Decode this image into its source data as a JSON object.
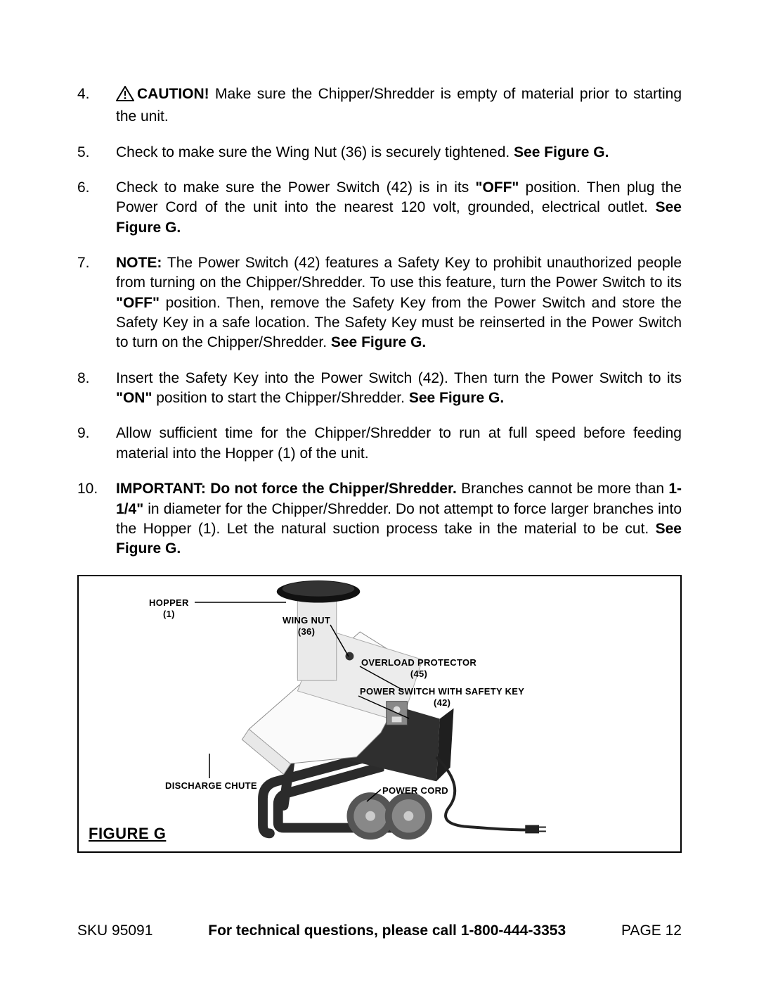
{
  "items": [
    {
      "num": "4.",
      "icon": true,
      "parts": [
        {
          "b": true,
          "t": "CAUTION!  "
        },
        {
          "b": false,
          "t": "Make sure the Chipper/Shredder is empty of material prior to starting the unit."
        }
      ]
    },
    {
      "num": "5.",
      "parts": [
        {
          "b": false,
          "t": "Check to make sure the Wing Nut (36) is securely tightened.  "
        },
        {
          "b": true,
          "t": "See Figure G."
        }
      ]
    },
    {
      "num": "6.",
      "parts": [
        {
          "b": false,
          "t": "Check to make sure the Power Switch (42) is in its "
        },
        {
          "b": true,
          "t": "\"OFF\""
        },
        {
          "b": false,
          "t": " position.  Then plug the Power Cord of the unit into the nearest 120 volt, grounded, electrical outlet. "
        },
        {
          "b": true,
          "t": "See Figure G."
        }
      ]
    },
    {
      "num": "7.",
      "parts": [
        {
          "b": true,
          "t": "NOTE:  "
        },
        {
          "b": false,
          "t": "The Power Switch (42) features a Safety Key to prohibit unauthorized people from turning on the Chipper/Shredder.  To use this feature, turn the Power Switch to its "
        },
        {
          "b": true,
          "t": "\"OFF\""
        },
        {
          "b": false,
          "t": " position.  Then, remove the Safety Key from the Power Switch and store the Safety Key in a safe location.  The Safety Key must be reinserted in the Power Switch to turn on the Chipper/Shredder. "
        },
        {
          "b": true,
          "t": "See Figure G."
        }
      ]
    },
    {
      "num": "8.",
      "parts": [
        {
          "b": false,
          "t": "Insert the Safety Key into the Power Switch (42).  Then turn the Power Switch to its "
        },
        {
          "b": true,
          "t": "\"ON\""
        },
        {
          "b": false,
          "t": " position to start the Chipper/Shredder.  "
        },
        {
          "b": true,
          "t": "See Figure G."
        }
      ]
    },
    {
      "num": "9.",
      "parts": [
        {
          "b": false,
          "t": "Allow sufficient time for the Chipper/Shredder to run at full speed before feeding material into the Hopper (1) of the unit."
        }
      ]
    },
    {
      "num": "10.",
      "parts": [
        {
          "b": true,
          "t": "IMPORTANT:  Do not force the Chipper/Shredder.  "
        },
        {
          "b": false,
          "t": "Branches cannot be more than "
        },
        {
          "b": true,
          "t": "1-1/4\""
        },
        {
          "b": false,
          "t": " in diameter for the Chipper/Shredder.  Do not attempt to force larger branches into the Hopper (1).  Let the natural suction process take in the material to be cut.  "
        },
        {
          "b": true,
          "t": "See Figure G."
        }
      ]
    }
  ],
  "figure": {
    "label": "FIGURE G",
    "callouts": {
      "hopper_l1": "HOPPER",
      "hopper_l2": "(1)",
      "wingnut_l1": "WING NUT",
      "wingnut_l2": "(36)",
      "overload_l1": "OVERLOAD PROTECTOR",
      "overload_l2": "(45)",
      "powerswitch_l1": "POWER SWITCH WITH SAFETY KEY",
      "powerswitch_l2": "(42)",
      "discharge_l1": "DISCHARGE CHUTE",
      "powercord_l1": "POWER CORD"
    }
  },
  "footer": {
    "sku": "SKU 95091",
    "mid": "For technical questions, please call 1-800-444-3353",
    "page": "PAGE 12"
  },
  "colors": {
    "text": "#000000",
    "bg": "#ffffff",
    "gray_dark": "#3a3a3a",
    "gray_mid": "#6c6c6c",
    "gray_light": "#b8b8b8"
  }
}
